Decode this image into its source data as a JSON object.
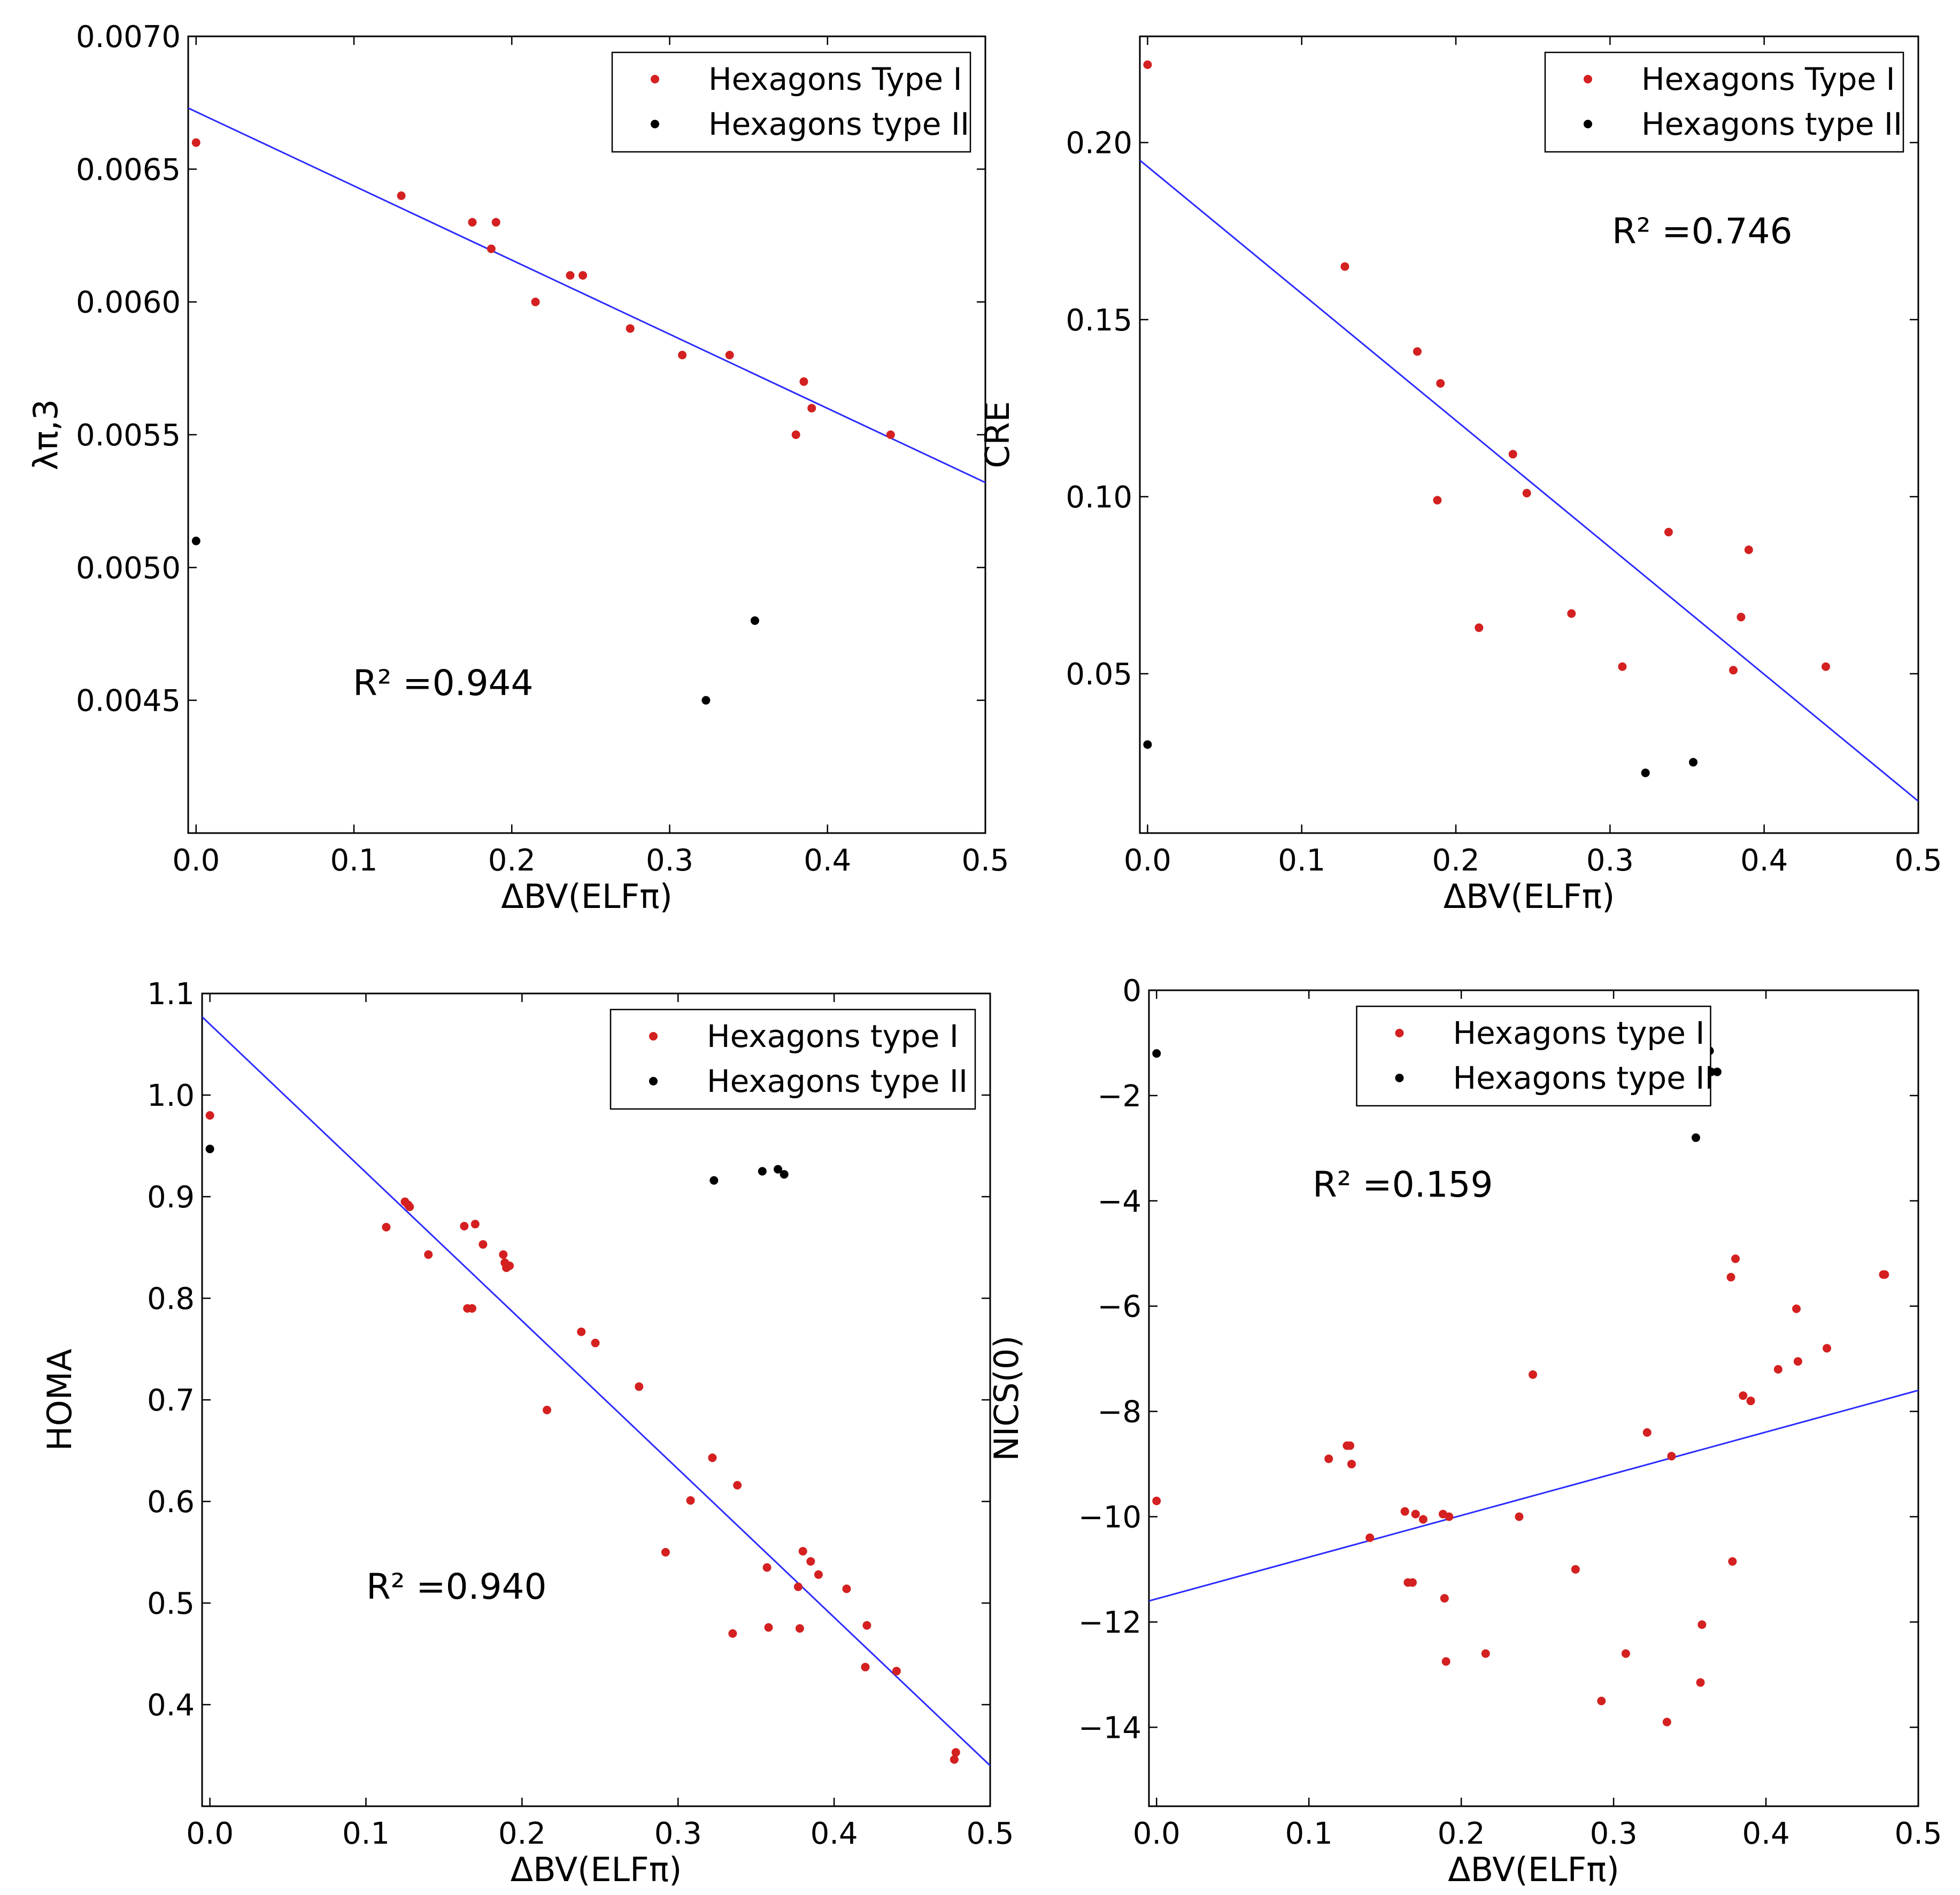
{
  "chart_data": [
    {
      "type": "scatter",
      "xlabel": "ΔBV(ELFπ)",
      "ylabel": "λπ,3",
      "xlim": [
        -0.005,
        0.5
      ],
      "ylim": [
        0.004,
        0.007
      ],
      "xticks": [
        0.0,
        0.1,
        0.2,
        0.3,
        0.4,
        0.5
      ],
      "xtick_labels": [
        "0.0",
        "0.1",
        "0.2",
        "0.3",
        "0.4",
        "0.5"
      ],
      "yticks": [
        0.0045,
        0.005,
        0.0055,
        0.006,
        0.0065,
        0.007
      ],
      "ytick_labels": [
        "0.0045",
        "0.0050",
        "0.0055",
        "0.0060",
        "0.0065",
        "0.0070"
      ],
      "legend": [
        "Hexagons Type I",
        "Hexagons type II"
      ],
      "legend_position": "top-right",
      "annotation": "R² =0.944",
      "fit_line": {
        "x": [
          -0.005,
          0.5
        ],
        "y": [
          0.00673,
          0.00532
        ]
      },
      "series": [
        {
          "name": "Hexagons Type I",
          "color": "#d42020",
          "x": [
            0.0,
            0.13,
            0.175,
            0.19,
            0.187,
            0.215,
            0.237,
            0.245,
            0.275,
            0.308,
            0.338,
            0.385,
            0.39,
            0.38,
            0.44
          ],
          "y": [
            0.0066,
            0.0064,
            0.0063,
            0.0063,
            0.0062,
            0.006,
            0.0061,
            0.0061,
            0.0059,
            0.0058,
            0.0058,
            0.0057,
            0.0056,
            0.0055,
            0.0055
          ]
        },
        {
          "name": "Hexagons type II",
          "color": "#000000",
          "x": [
            0.0,
            0.323,
            0.354
          ],
          "y": [
            0.0051,
            0.0045,
            0.0048
          ]
        }
      ]
    },
    {
      "type": "scatter",
      "xlabel": "ΔBV(ELFπ)",
      "ylabel": "CRE",
      "xlim": [
        -0.005,
        0.5
      ],
      "ylim": [
        0.005,
        0.23
      ],
      "xticks": [
        0.0,
        0.1,
        0.2,
        0.3,
        0.4,
        0.5
      ],
      "xtick_labels": [
        "0.0",
        "0.1",
        "0.2",
        "0.3",
        "0.4",
        "0.5"
      ],
      "yticks": [
        0.05,
        0.1,
        0.15,
        0.2
      ],
      "ytick_labels": [
        "0.05",
        "0.10",
        "0.15",
        "0.20"
      ],
      "legend": [
        "Hexagons Type I",
        "Hexagons type II"
      ],
      "legend_position": "top-right",
      "annotation": "R² =0.746",
      "fit_line": {
        "x": [
          -0.005,
          0.5
        ],
        "y": [
          0.195,
          0.014
        ]
      },
      "series": [
        {
          "name": "Hexagons Type I",
          "color": "#d42020",
          "x": [
            0.0,
            0.128,
            0.175,
            0.19,
            0.188,
            0.237,
            0.246,
            0.215,
            0.275,
            0.308,
            0.338,
            0.39,
            0.385,
            0.38,
            0.44
          ],
          "y": [
            0.222,
            0.165,
            0.141,
            0.132,
            0.099,
            0.112,
            0.101,
            0.063,
            0.067,
            0.052,
            0.09,
            0.085,
            0.066,
            0.051,
            0.052
          ]
        },
        {
          "name": "Hexagons type II",
          "color": "#000000",
          "x": [
            0.0,
            0.323,
            0.354
          ],
          "y": [
            0.03,
            0.022,
            0.025
          ]
        }
      ]
    },
    {
      "type": "scatter",
      "xlabel": "ΔBV(ELFπ)",
      "ylabel": "HOMA",
      "xlim": [
        -0.005,
        0.5
      ],
      "ylim": [
        0.3,
        1.1
      ],
      "xticks": [
        0.0,
        0.1,
        0.2,
        0.3,
        0.4,
        0.5
      ],
      "xtick_labels": [
        "0.0",
        "0.1",
        "0.2",
        "0.3",
        "0.4",
        "0.5"
      ],
      "yticks": [
        0.4,
        0.5,
        0.6,
        0.7,
        0.8,
        0.9,
        1.0,
        1.1
      ],
      "ytick_labels": [
        "0.4",
        "0.5",
        "0.6",
        "0.7",
        "0.8",
        "0.9",
        "1.0",
        "1.1"
      ],
      "legend": [
        "Hexagons type I",
        "Hexagons type II"
      ],
      "legend_position": "top-right",
      "annotation": "R² =0.940",
      "fit_line": {
        "x": [
          -0.005,
          0.5
        ],
        "y": [
          1.077,
          0.34
        ]
      },
      "series": [
        {
          "name": "Hexagons type I",
          "color": "#d42020",
          "x": [
            0.0,
            0.113,
            0.125,
            0.127,
            0.128,
            0.14,
            0.163,
            0.165,
            0.168,
            0.17,
            0.175,
            0.188,
            0.189,
            0.19,
            0.192,
            0.216,
            0.238,
            0.247,
            0.275,
            0.292,
            0.308,
            0.322,
            0.335,
            0.338,
            0.357,
            0.358,
            0.377,
            0.378,
            0.38,
            0.385,
            0.39,
            0.408,
            0.42,
            0.421,
            0.44,
            0.477,
            0.478
          ],
          "y": [
            0.98,
            0.87,
            0.895,
            0.892,
            0.89,
            0.843,
            0.871,
            0.79,
            0.79,
            0.873,
            0.853,
            0.843,
            0.835,
            0.83,
            0.832,
            0.69,
            0.767,
            0.756,
            0.713,
            0.55,
            0.601,
            0.643,
            0.47,
            0.616,
            0.535,
            0.476,
            0.516,
            0.475,
            0.551,
            0.541,
            0.528,
            0.514,
            0.437,
            0.478,
            0.433,
            0.346,
            0.353
          ]
        },
        {
          "name": "Hexagons type II",
          "color": "#000000",
          "x": [
            0.0,
            0.323,
            0.354,
            0.364,
            0.368
          ],
          "y": [
            0.947,
            0.916,
            0.925,
            0.927,
            0.922
          ]
        }
      ]
    },
    {
      "type": "scatter",
      "xlabel": "ΔBV(ELFπ)",
      "ylabel": "NICS(0)",
      "xlim": [
        -0.005,
        0.5
      ],
      "ylim": [
        -15.5,
        0
      ],
      "xticks": [
        0.0,
        0.1,
        0.2,
        0.3,
        0.4,
        0.5
      ],
      "xtick_labels": [
        "0.0",
        "0.1",
        "0.2",
        "0.3",
        "0.4",
        "0.5"
      ],
      "yticks": [
        -14,
        -12,
        -10,
        -8,
        -6,
        -4,
        -2,
        0
      ],
      "ytick_labels": [
        "−14",
        "−12",
        "−10",
        "−8",
        "−6",
        "−4",
        "−2",
        "0"
      ],
      "legend": [
        "Hexagons type I",
        "Hexagons type II"
      ],
      "legend_position": "top-center",
      "annotation": "R² =0.159",
      "fit_line": {
        "x": [
          -0.005,
          0.5
        ],
        "y": [
          -11.6,
          -7.6
        ]
      },
      "series": [
        {
          "name": "Hexagons type I",
          "color": "#d42020",
          "x": [
            0.0,
            0.113,
            0.125,
            0.127,
            0.128,
            0.14,
            0.163,
            0.165,
            0.168,
            0.17,
            0.175,
            0.188,
            0.189,
            0.19,
            0.192,
            0.216,
            0.238,
            0.247,
            0.275,
            0.292,
            0.308,
            0.322,
            0.335,
            0.338,
            0.357,
            0.358,
            0.377,
            0.378,
            0.38,
            0.385,
            0.39,
            0.408,
            0.42,
            0.421,
            0.44,
            0.477,
            0.478
          ],
          "y": [
            -9.7,
            -8.9,
            -8.65,
            -8.65,
            -9.0,
            -10.4,
            -9.9,
            -11.25,
            -11.25,
            -9.95,
            -10.05,
            -9.95,
            -11.55,
            -12.75,
            -10.0,
            -12.6,
            -10.0,
            -7.3,
            -11.0,
            -13.5,
            -12.6,
            -8.4,
            -13.9,
            -8.85,
            -13.15,
            -12.05,
            -5.45,
            -10.85,
            -5.1,
            -7.7,
            -7.8,
            -7.2,
            -6.05,
            -7.05,
            -6.8,
            -5.4,
            -5.4
          ]
        },
        {
          "name": "Hexagons type II",
          "color": "#000000",
          "x": [
            0.0,
            0.354,
            0.363,
            0.364,
            0.368
          ],
          "y": [
            -1.2,
            -2.8,
            -1.15,
            -1.55,
            -1.55
          ]
        }
      ]
    }
  ]
}
